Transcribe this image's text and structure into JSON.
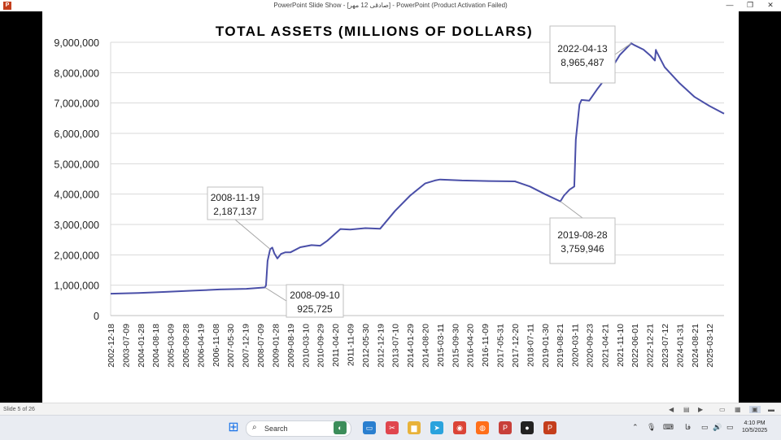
{
  "window": {
    "title": "PowerPoint Slide Show - [صادقی 12 مهر] - PowerPoint (Product Activation Failed)",
    "app_icon": "P",
    "minimize_glyph": "—",
    "restore_glyph": "❐",
    "close_glyph": "✕"
  },
  "statusbar": {
    "slide_indicator": "Slide 5 of 26",
    "prev_glyph": "◀",
    "menu_glyph": "▤",
    "next_glyph": "▶",
    "normal_glyph": "▭",
    "sorter_glyph": "▦",
    "reading_glyph": "▣",
    "slideshow_glyph": "▬"
  },
  "taskbar": {
    "start_glyph": "⊞",
    "search_placeholder": "Search",
    "search_glyph": "⌕",
    "apps": [
      {
        "name": "widgets",
        "glyph": "◐",
        "color": "#3c8d5a"
      },
      {
        "name": "monitor",
        "glyph": "▭",
        "color": "#2a7fcf"
      },
      {
        "name": "snip",
        "glyph": "✂",
        "color": "#e0464e"
      },
      {
        "name": "file-explorer",
        "glyph": "▆",
        "color": "#e8b23a"
      },
      {
        "name": "telegram",
        "glyph": "➤",
        "color": "#2aa3dd"
      },
      {
        "name": "chrome",
        "glyph": "◉",
        "color": "#db4437"
      },
      {
        "name": "firefox",
        "glyph": "◍",
        "color": "#ff6f1a"
      },
      {
        "name": "p-app",
        "glyph": "P",
        "color": "#c8403a"
      },
      {
        "name": "record",
        "glyph": "●",
        "color": "#222222"
      },
      {
        "name": "powerpoint",
        "glyph": "P",
        "color": "#c43e1c"
      }
    ],
    "tray_chevron": "⌃",
    "tray_mic": "🎙",
    "tray_keyboard": "⌨",
    "language": "فا",
    "tray_display": "▭",
    "tray_volume": "🔊",
    "tray_battery": "▭",
    "time": "4:10 PM",
    "date": "10/5/2025"
  },
  "colors": {
    "line": "#4a4fa8",
    "title": "#111111",
    "axis_text": "#222222",
    "grid": "#d9d9d9"
  },
  "chart_data": {
    "type": "line",
    "title": "TOTAL ASSETS (MILLIONS OF DOLLARS)",
    "ylim": [
      0,
      9000000
    ],
    "y_ticks": [
      0,
      1000000,
      2000000,
      3000000,
      4000000,
      5000000,
      6000000,
      7000000,
      8000000,
      9000000
    ],
    "y_tick_labels": [
      "0",
      "1,000,000",
      "2,000,000",
      "3,000,000",
      "4,000,000",
      "5,000,000",
      "6,000,000",
      "7,000,000",
      "8,000,000",
      "9,000,000"
    ],
    "x_range": [
      "2002-12-18",
      "2025-09-24"
    ],
    "x_tick_labels": [
      "2002-12-18",
      "2003-07-09",
      "2004-01-28",
      "2004-08-18",
      "2005-03-09",
      "2005-09-28",
      "2006-04-19",
      "2006-11-08",
      "2007-05-30",
      "2007-12-19",
      "2008-07-09",
      "2009-01-28",
      "2009-08-19",
      "2010-03-10",
      "2010-09-29",
      "2011-04-20",
      "2011-11-09",
      "2012-05-30",
      "2012-12-19",
      "2013-07-10",
      "2014-01-29",
      "2014-08-20",
      "2015-03-11",
      "2015-09-30",
      "2016-04-20",
      "2016-11-09",
      "2017-05-31",
      "2017-12-20",
      "2018-07-11",
      "2019-01-30",
      "2019-08-21",
      "2020-03-11",
      "2020-09-23",
      "2021-04-21",
      "2021-11-10",
      "2022-06-01",
      "2022-12-21",
      "2023-07-12",
      "2024-01-31",
      "2024-08-21",
      "2025-03-12"
    ],
    "grid": true,
    "legend": "none",
    "series": [
      {
        "x": [
          "2002-12-18",
          "2004-01-01",
          "2005-01-01",
          "2006-01-01",
          "2007-01-01",
          "2008-01-01",
          "2008-09-10",
          "2008-09-24",
          "2008-10-15",
          "2008-11-19",
          "2008-12-17",
          "2009-01-14",
          "2009-02-25",
          "2009-04-15",
          "2009-06-10",
          "2009-08-19",
          "2010-01-01",
          "2010-06-01",
          "2010-09-29",
          "2011-01-05",
          "2011-06-29",
          "2011-11-09",
          "2012-06-01",
          "2012-12-19",
          "2013-07-10",
          "2014-01-29",
          "2014-08-20",
          "2014-12-31",
          "2015-03-11",
          "2016-01-01",
          "2017-01-01",
          "2017-12-20",
          "2018-07-11",
          "2019-01-30",
          "2019-08-28",
          "2019-10-16",
          "2020-01-01",
          "2020-03-04",
          "2020-03-25",
          "2020-05-13",
          "2020-06-10",
          "2020-09-23",
          "2021-01-06",
          "2021-04-21",
          "2021-11-10",
          "2022-04-13",
          "2022-06-01",
          "2022-09-28",
          "2023-01-04",
          "2023-03-01",
          "2023-03-15",
          "2023-03-22",
          "2023-07-12",
          "2024-01-31",
          "2024-08-21",
          "2025-03-12",
          "2025-09-24"
        ],
        "y": [
          720000,
          745000,
          780000,
          820000,
          860000,
          880000,
          925725,
          1000000,
          1800000,
          2187137,
          2240000,
          2050000,
          1880000,
          2030000,
          2080000,
          2080000,
          2250000,
          2320000,
          2300000,
          2470000,
          2850000,
          2830000,
          2880000,
          2860000,
          3450000,
          3950000,
          4350000,
          4450000,
          4480000,
          4450000,
          4430000,
          4420000,
          4250000,
          4000000,
          3759946,
          3950000,
          4150000,
          4250000,
          5800000,
          6950000,
          7100000,
          7080000,
          7450000,
          7780000,
          8580000,
          8965487,
          8900000,
          8760000,
          8550000,
          8400000,
          8750000,
          8700000,
          8180000,
          7650000,
          7200000,
          6900000,
          6650000
        ]
      }
    ],
    "annotations": [
      {
        "label_date": "2008-11-19",
        "label_value": "2,187,137",
        "x": "2008-11-19",
        "y": 2187137
      },
      {
        "label_date": "2008-09-10",
        "label_value": "925,725",
        "x": "2008-09-10",
        "y": 925725
      },
      {
        "label_date": "2019-08-28",
        "label_value": "3,759,946",
        "x": "2019-08-28",
        "y": 3759946
      },
      {
        "label_date": "2022-04-13",
        "label_value": "8,965,487",
        "x": "2022-04-13",
        "y": 8965487
      }
    ]
  }
}
